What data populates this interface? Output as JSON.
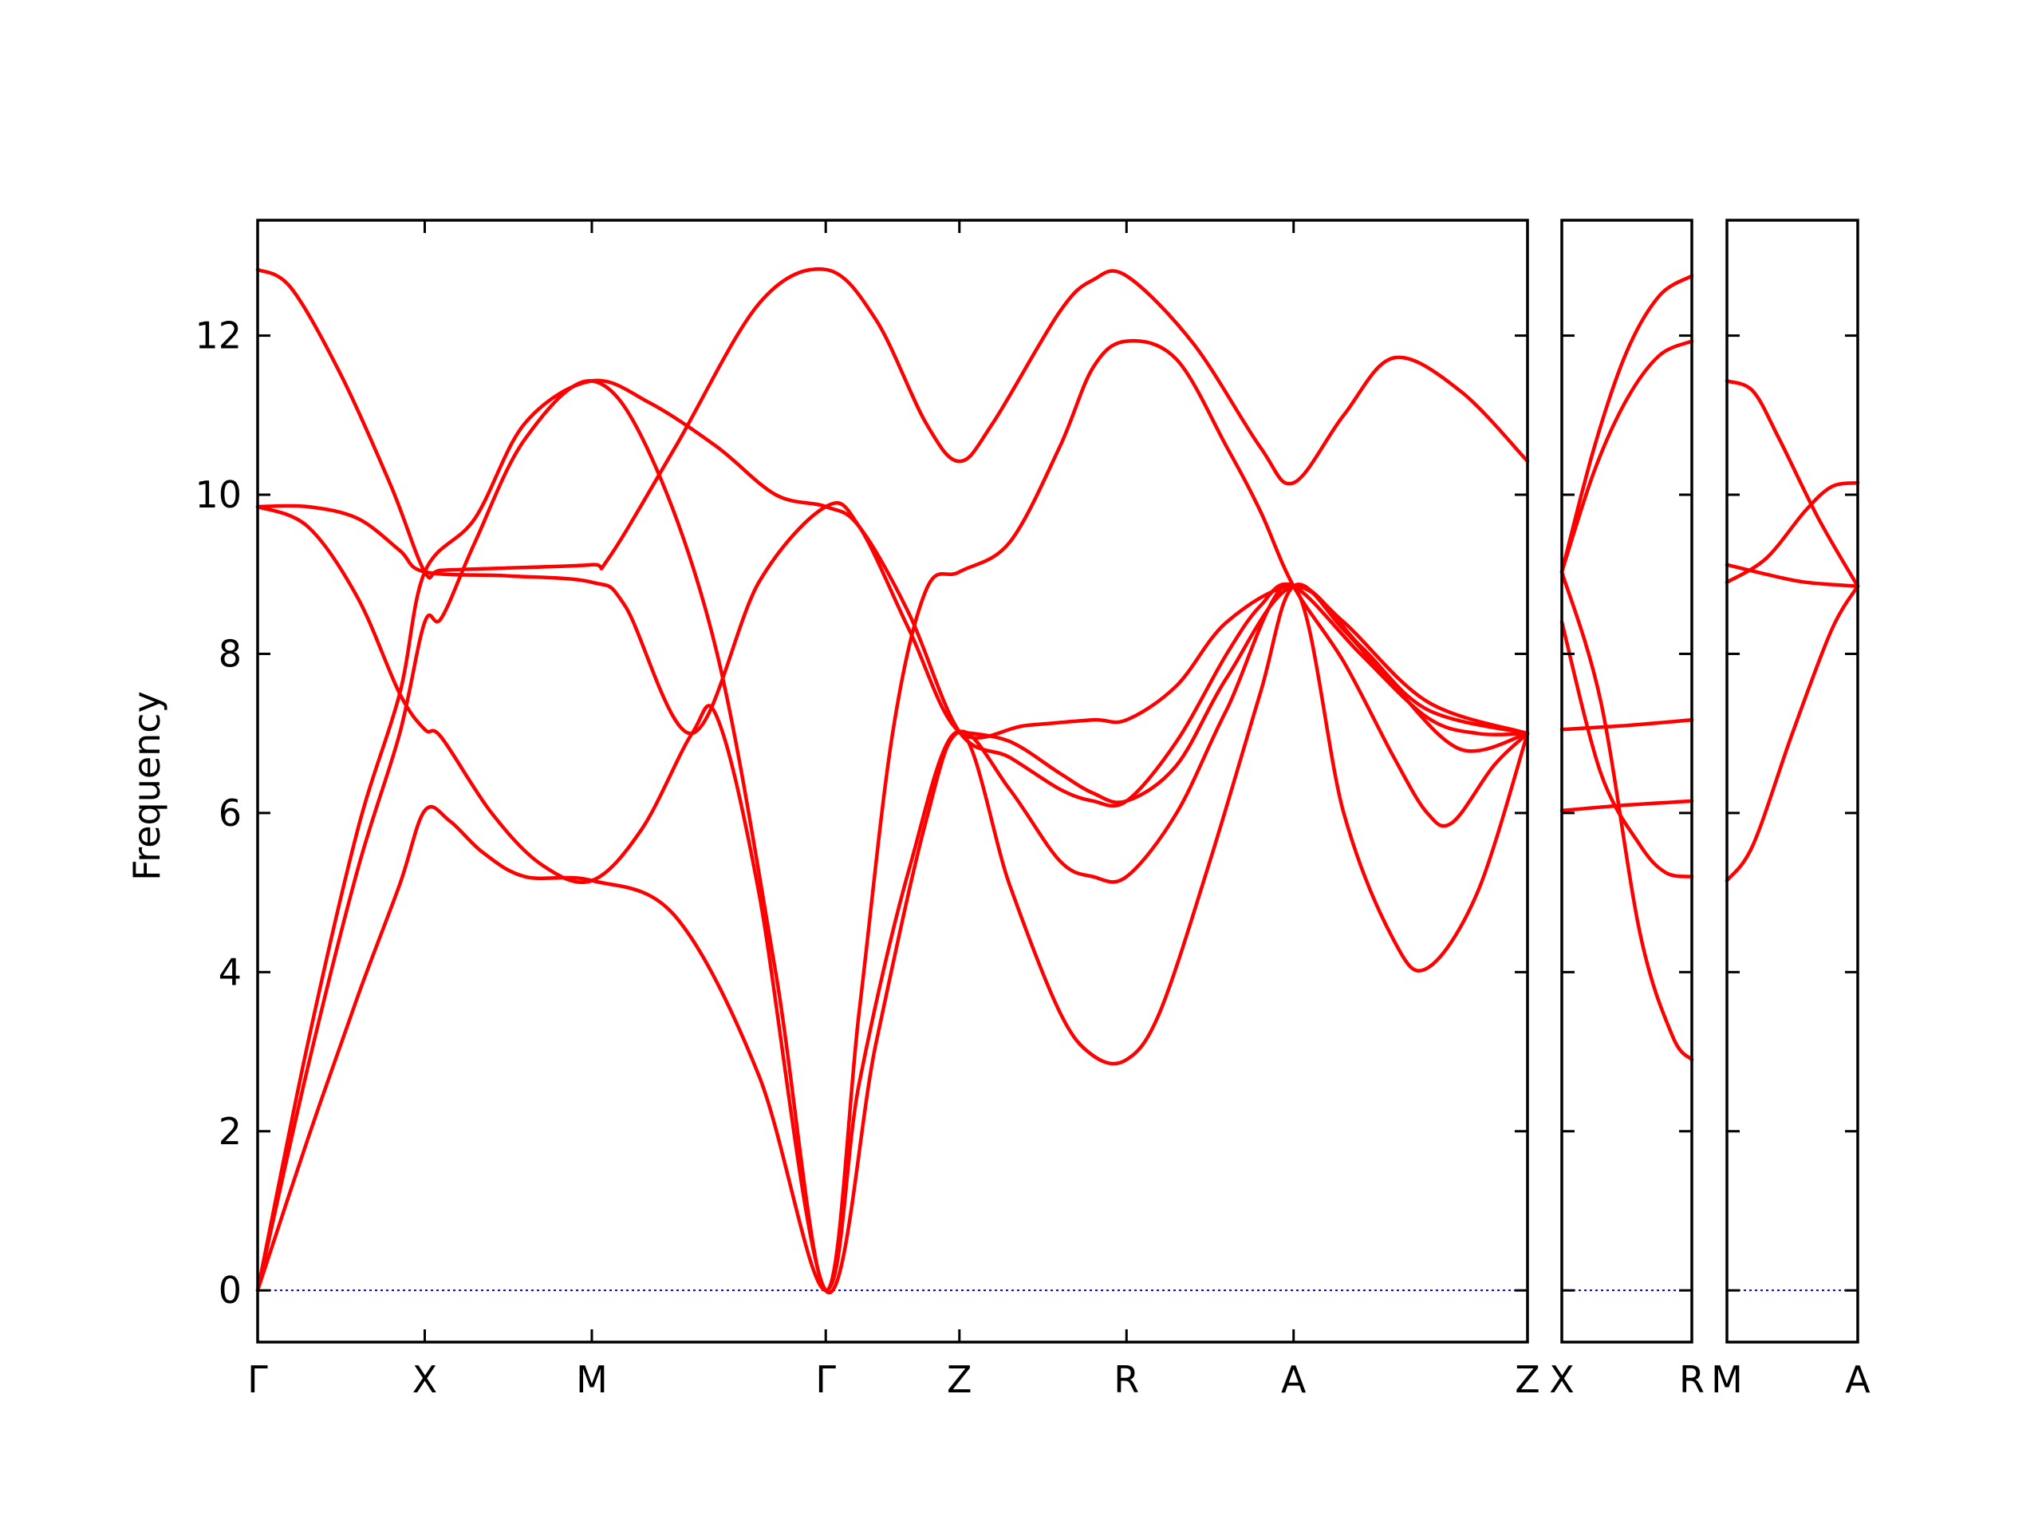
{
  "chart_data": {
    "type": "line",
    "ylabel": "Frequency",
    "ylim": [
      -0.65,
      13.45
    ],
    "yticks": [
      0,
      2,
      4,
      6,
      8,
      10,
      12
    ],
    "grid": false,
    "zero_line": {
      "color": "#0000cc",
      "style": "dotted"
    },
    "band_color": "#ff0000",
    "panels": [
      {
        "labels": [
          "Γ",
          "X",
          "M",
          "Γ",
          "Z",
          "R",
          "A",
          "Z"
        ],
        "nodes": [
          0,
          1,
          2,
          3.4,
          4.2,
          5.2,
          6.2,
          7.6
        ],
        "bands": [
          [
            [
              0,
              0
            ],
            [
              0.3,
              1.9
            ],
            [
              0.6,
              3.7
            ],
            [
              0.85,
              5.1
            ],
            [
              1,
              6.03
            ],
            [
              1.15,
              5.9
            ],
            [
              1.35,
              5.5
            ],
            [
              1.6,
              5.2
            ],
            [
              2,
              5.15
            ],
            [
              2.5,
              4.7
            ],
            [
              3,
              2.7
            ],
            [
              3.4,
              0
            ],
            [
              3.6,
              2.6
            ],
            [
              3.9,
              5.3
            ],
            [
              4.2,
              7.02
            ],
            [
              4.5,
              5.1
            ],
            [
              4.8,
              3.5
            ],
            [
              5,
              2.95
            ],
            [
              5.2,
              2.9
            ],
            [
              5.4,
              3.5
            ],
            [
              5.7,
              5.4
            ],
            [
              6,
              7.5
            ],
            [
              6.2,
              8.85
            ],
            [
              6.5,
              8.3
            ],
            [
              6.8,
              7.6
            ],
            [
              7.2,
              6.8
            ],
            [
              7.6,
              7.0
            ]
          ],
          [
            [
              0,
              0
            ],
            [
              0.3,
              2.8
            ],
            [
              0.6,
              5.3
            ],
            [
              0.85,
              7.0
            ],
            [
              1,
              8.4
            ],
            [
              1.1,
              8.45
            ],
            [
              1.3,
              9.4
            ],
            [
              1.6,
              10.7
            ],
            [
              2,
              11.43
            ],
            [
              2.35,
              10.5
            ],
            [
              2.75,
              8.0
            ],
            [
              3.1,
              4.0
            ],
            [
              3.4,
              0
            ],
            [
              3.6,
              3.5
            ],
            [
              3.8,
              7.0
            ],
            [
              4.0,
              8.8
            ],
            [
              4.2,
              9.03
            ],
            [
              4.5,
              9.4
            ],
            [
              4.8,
              10.6
            ],
            [
              5,
              11.6
            ],
            [
              5.2,
              11.93
            ],
            [
              5.5,
              11.7
            ],
            [
              5.8,
              10.6
            ],
            [
              6,
              9.8
            ],
            [
              6.2,
              8.85
            ],
            [
              6.5,
              7.9
            ],
            [
              6.8,
              6.7
            ],
            [
              7.0,
              6.0
            ],
            [
              7.15,
              5.88
            ],
            [
              7.4,
              6.6
            ],
            [
              7.6,
              7.0
            ]
          ],
          [
            [
              0,
              0
            ],
            [
              0.3,
              3.1
            ],
            [
              0.6,
              5.8
            ],
            [
              0.85,
              7.5
            ],
            [
              1,
              9.03
            ],
            [
              1.3,
              9.7
            ],
            [
              1.6,
              10.9
            ],
            [
              2,
              11.43
            ],
            [
              2.35,
              11.15
            ],
            [
              2.75,
              10.6
            ],
            [
              3.1,
              10.0
            ],
            [
              3.4,
              9.85
            ],
            [
              3.6,
              9.6
            ],
            [
              3.9,
              8.5
            ],
            [
              4.2,
              7.02
            ],
            [
              4.5,
              6.7
            ],
            [
              4.8,
              6.3
            ],
            [
              5,
              6.15
            ],
            [
              5.2,
              6.15
            ],
            [
              5.5,
              6.9
            ],
            [
              5.8,
              8.0
            ],
            [
              6,
              8.6
            ],
            [
              6.2,
              8.85
            ],
            [
              6.6,
              8.0
            ],
            [
              7.0,
              7.2
            ],
            [
              7.3,
              7.0
            ],
            [
              7.6,
              7.0
            ]
          ],
          [
            [
              0,
              12.83
            ],
            [
              0.2,
              12.6
            ],
            [
              0.5,
              11.5
            ],
            [
              0.8,
              10.1
            ],
            [
              1,
              9.03
            ],
            [
              1.1,
              9.05
            ],
            [
              1.5,
              9.08
            ],
            [
              2,
              9.12
            ],
            [
              2.1,
              9.2
            ],
            [
              2.5,
              10.6
            ],
            [
              3.0,
              12.4
            ],
            [
              3.4,
              12.83
            ],
            [
              3.7,
              12.2
            ],
            [
              4.0,
              10.9
            ],
            [
              4.2,
              10.42
            ],
            [
              4.4,
              10.9
            ],
            [
              4.8,
              12.3
            ],
            [
              5.0,
              12.7
            ],
            [
              5.2,
              12.75
            ],
            [
              5.6,
              11.9
            ],
            [
              6.0,
              10.6
            ],
            [
              6.2,
              10.15
            ],
            [
              6.5,
              11.0
            ],
            [
              6.8,
              11.72
            ],
            [
              7.2,
              11.3
            ],
            [
              7.6,
              10.42
            ]
          ],
          [
            [
              0,
              9.85
            ],
            [
              0.3,
              9.85
            ],
            [
              0.6,
              9.7
            ],
            [
              0.85,
              9.3
            ],
            [
              1,
              9.03
            ],
            [
              1.5,
              8.98
            ],
            [
              2,
              8.9
            ],
            [
              2.2,
              8.6
            ],
            [
              2.6,
              7.0
            ],
            [
              3.0,
              8.9
            ],
            [
              3.4,
              9.85
            ],
            [
              3.6,
              9.6
            ],
            [
              3.9,
              8.3
            ],
            [
              4.2,
              7.02
            ],
            [
              4.6,
              7.1
            ],
            [
              5.0,
              7.17
            ],
            [
              5.2,
              7.17
            ],
            [
              5.5,
              7.6
            ],
            [
              5.8,
              8.4
            ],
            [
              6.2,
              8.85
            ],
            [
              6.5,
              8.4
            ],
            [
              7.0,
              7.4
            ],
            [
              7.6,
              7.0
            ]
          ],
          [
            [
              0,
              9.85
            ],
            [
              0.3,
              9.6
            ],
            [
              0.6,
              8.7
            ],
            [
              0.85,
              7.5
            ],
            [
              1,
              7.05
            ],
            [
              1.1,
              6.95
            ],
            [
              1.4,
              6.0
            ],
            [
              1.7,
              5.35
            ],
            [
              2,
              5.15
            ],
            [
              2.3,
              5.8
            ],
            [
              2.6,
              7.0
            ],
            [
              2.75,
              7.2
            ],
            [
              3.0,
              5.0
            ],
            [
              3.4,
              0
            ],
            [
              3.7,
              3.1
            ],
            [
              4.0,
              5.9
            ],
            [
              4.2,
              7.02
            ],
            [
              4.5,
              6.3
            ],
            [
              4.8,
              5.4
            ],
            [
              5.0,
              5.2
            ],
            [
              5.2,
              5.2
            ],
            [
              5.5,
              6.0
            ],
            [
              5.8,
              7.3
            ],
            [
              6.2,
              8.85
            ],
            [
              6.5,
              6.0
            ],
            [
              6.8,
              4.4
            ],
            [
              7.0,
              4.05
            ],
            [
              7.3,
              5.0
            ],
            [
              7.6,
              7.0
            ]
          ],
          [
            [
              4.2,
              7.02
            ],
            [
              4.5,
              6.9
            ],
            [
              4.8,
              6.5
            ],
            [
              5.0,
              6.25
            ],
            [
              5.2,
              6.15
            ],
            [
              5.5,
              6.6
            ],
            [
              5.8,
              7.7
            ],
            [
              6.2,
              8.85
            ],
            [
              6.6,
              8.1
            ],
            [
              7.0,
              7.3
            ],
            [
              7.6,
              7.0
            ]
          ]
        ]
      },
      {
        "labels": [
          "X",
          "R"
        ],
        "nodes": [
          0,
          1
        ],
        "bands": [
          [
            [
              0,
              9.03
            ],
            [
              0.25,
              10.6
            ],
            [
              0.5,
              11.8
            ],
            [
              0.75,
              12.5
            ],
            [
              1,
              12.75
            ]
          ],
          [
            [
              0,
              9.03
            ],
            [
              0.25,
              10.3
            ],
            [
              0.5,
              11.2
            ],
            [
              0.75,
              11.75
            ],
            [
              1,
              11.93
            ]
          ],
          [
            [
              0,
              8.4
            ],
            [
              0.3,
              6.5
            ],
            [
              0.6,
              5.6
            ],
            [
              0.8,
              5.25
            ],
            [
              1,
              5.2
            ]
          ],
          [
            [
              0,
              9.03
            ],
            [
              0.3,
              7.4
            ],
            [
              0.6,
              4.5
            ],
            [
              0.85,
              3.2
            ],
            [
              1,
              2.9
            ]
          ],
          [
            [
              0,
              7.05
            ],
            [
              0.5,
              7.1
            ],
            [
              1,
              7.17
            ]
          ],
          [
            [
              0,
              6.03
            ],
            [
              0.5,
              6.1
            ],
            [
              1,
              6.15
            ]
          ]
        ]
      },
      {
        "labels": [
          "M",
          "A"
        ],
        "nodes": [
          0,
          1
        ],
        "bands": [
          [
            [
              0,
              11.43
            ],
            [
              0.2,
              11.3
            ],
            [
              0.4,
              10.7
            ],
            [
              0.7,
              9.7
            ],
            [
              1,
              8.85
            ]
          ],
          [
            [
              0,
              9.12
            ],
            [
              0.3,
              9.0
            ],
            [
              0.6,
              8.9
            ],
            [
              1,
              8.85
            ]
          ],
          [
            [
              0,
              8.9
            ],
            [
              0.3,
              9.2
            ],
            [
              0.6,
              9.8
            ],
            [
              0.8,
              10.1
            ],
            [
              1,
              10.15
            ]
          ],
          [
            [
              0,
              5.15
            ],
            [
              0.2,
              5.6
            ],
            [
              0.5,
              7.0
            ],
            [
              0.8,
              8.3
            ],
            [
              1,
              8.85
            ]
          ]
        ]
      }
    ]
  }
}
